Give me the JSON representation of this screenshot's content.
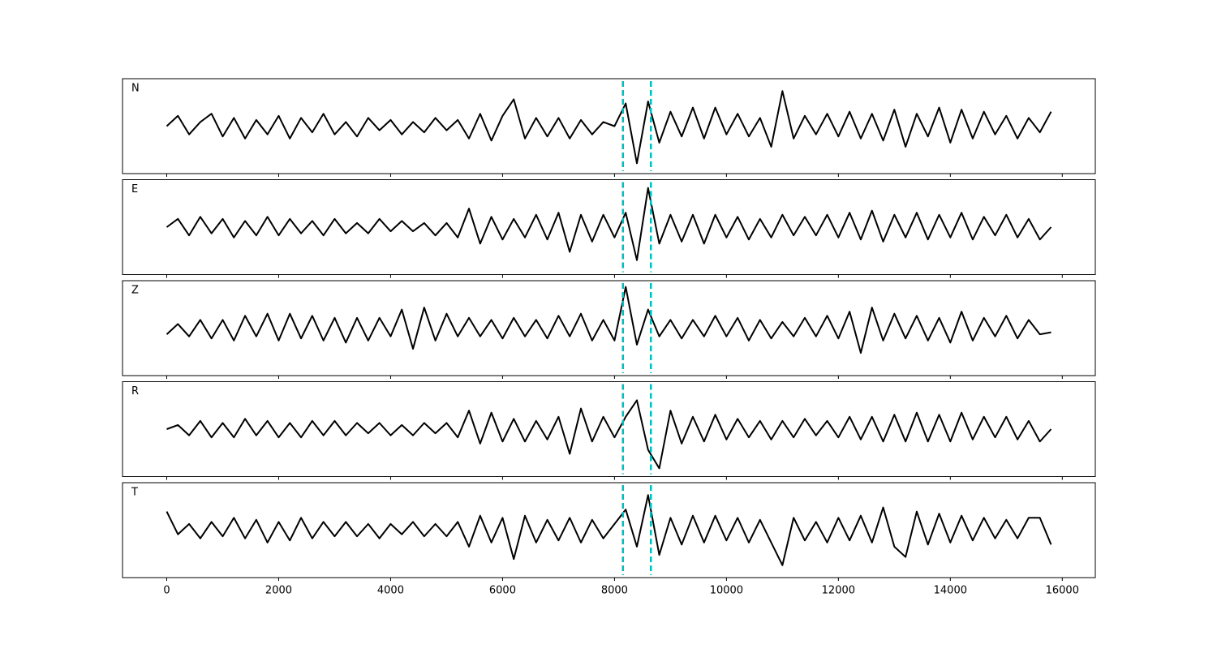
{
  "chart_data": {
    "type": "line",
    "x": [
      0,
      200,
      400,
      600,
      800,
      1000,
      1200,
      1400,
      1600,
      1800,
      2000,
      2200,
      2400,
      2600,
      2800,
      3000,
      3200,
      3400,
      3600,
      3800,
      4000,
      4200,
      4400,
      4600,
      4800,
      5000,
      5200,
      5400,
      5600,
      5800,
      6000,
      6200,
      6400,
      6600,
      6800,
      7000,
      7200,
      7400,
      7600,
      7800,
      8000,
      8200,
      8400,
      8600,
      8800,
      9000,
      9200,
      9400,
      9600,
      9800,
      10000,
      10200,
      10400,
      10600,
      10800,
      11000,
      11200,
      11400,
      11600,
      11800,
      12000,
      12200,
      12400,
      12600,
      12800,
      13000,
      13200,
      13400,
      13600,
      13800,
      14000,
      14200,
      14400,
      14600,
      14800,
      15000,
      15200,
      15400,
      15600,
      15800
    ],
    "xlim": [
      -790,
      16590
    ],
    "xticks": [
      0,
      2000,
      4000,
      6000,
      8000,
      10000,
      12000,
      14000,
      16000
    ],
    "ylim": [
      -1.15,
      1.15
    ],
    "series": [
      {
        "name": "N",
        "color": "#000000",
        "values": [
          0.0,
          0.25,
          -0.2,
          0.1,
          0.3,
          -0.25,
          0.2,
          -0.3,
          0.15,
          -0.2,
          0.25,
          -0.3,
          0.2,
          -0.15,
          0.3,
          -0.2,
          0.1,
          -0.25,
          0.2,
          -0.1,
          0.15,
          -0.2,
          0.1,
          -0.15,
          0.2,
          -0.1,
          0.15,
          -0.3,
          0.3,
          -0.35,
          0.25,
          0.65,
          -0.3,
          0.2,
          -0.25,
          0.2,
          -0.3,
          0.15,
          -0.2,
          0.1,
          0.0,
          0.55,
          -0.9,
          0.6,
          -0.4,
          0.35,
          -0.25,
          0.45,
          -0.3,
          0.45,
          -0.2,
          0.3,
          -0.25,
          0.2,
          -0.5,
          0.85,
          -0.3,
          0.25,
          -0.2,
          0.3,
          -0.25,
          0.35,
          -0.3,
          0.3,
          -0.35,
          0.4,
          -0.5,
          0.3,
          -0.25,
          0.45,
          -0.4,
          0.4,
          -0.3,
          0.35,
          -0.2,
          0.25,
          -0.3,
          0.2,
          -0.15,
          0.35
        ]
      },
      {
        "name": "E",
        "color": "#000000",
        "values": [
          0.0,
          0.2,
          -0.2,
          0.25,
          -0.15,
          0.2,
          -0.25,
          0.15,
          -0.2,
          0.25,
          -0.2,
          0.2,
          -0.15,
          0.15,
          -0.2,
          0.2,
          -0.15,
          0.1,
          -0.15,
          0.2,
          -0.1,
          0.15,
          -0.1,
          0.1,
          -0.2,
          0.1,
          -0.25,
          0.45,
          -0.4,
          0.25,
          -0.3,
          0.2,
          -0.25,
          0.3,
          -0.3,
          0.35,
          -0.6,
          0.3,
          -0.35,
          0.3,
          -0.25,
          0.35,
          -0.8,
          0.95,
          -0.4,
          0.3,
          -0.35,
          0.3,
          -0.4,
          0.3,
          -0.25,
          0.25,
          -0.3,
          0.2,
          -0.25,
          0.3,
          -0.2,
          0.25,
          -0.2,
          0.3,
          -0.25,
          0.35,
          -0.3,
          0.4,
          -0.35,
          0.3,
          -0.25,
          0.35,
          -0.3,
          0.3,
          -0.25,
          0.35,
          -0.3,
          0.25,
          -0.2,
          0.3,
          -0.25,
          0.2,
          -0.3,
          0.0
        ]
      },
      {
        "name": "Z",
        "color": "#000000",
        "values": [
          -0.15,
          0.1,
          -0.2,
          0.2,
          -0.25,
          0.2,
          -0.3,
          0.3,
          -0.2,
          0.35,
          -0.3,
          0.35,
          -0.25,
          0.3,
          -0.3,
          0.25,
          -0.35,
          0.25,
          -0.3,
          0.25,
          -0.2,
          0.45,
          -0.5,
          0.5,
          -0.3,
          0.35,
          -0.2,
          0.25,
          -0.2,
          0.2,
          -0.25,
          0.25,
          -0.2,
          0.2,
          -0.25,
          0.3,
          -0.2,
          0.35,
          -0.3,
          0.2,
          -0.3,
          1.0,
          -0.4,
          0.45,
          -0.2,
          0.2,
          -0.25,
          0.2,
          -0.2,
          0.3,
          -0.2,
          0.25,
          -0.3,
          0.2,
          -0.25,
          0.15,
          -0.2,
          0.25,
          -0.2,
          0.3,
          -0.25,
          0.4,
          -0.6,
          0.5,
          -0.3,
          0.35,
          -0.25,
          0.3,
          -0.3,
          0.25,
          -0.35,
          0.4,
          -0.3,
          0.25,
          -0.2,
          0.3,
          -0.25,
          0.2,
          -0.15,
          -0.1
        ]
      },
      {
        "name": "R",
        "color": "#000000",
        "values": [
          0.0,
          0.1,
          -0.15,
          0.2,
          -0.2,
          0.15,
          -0.2,
          0.25,
          -0.15,
          0.2,
          -0.2,
          0.15,
          -0.2,
          0.2,
          -0.15,
          0.2,
          -0.15,
          0.15,
          -0.1,
          0.15,
          -0.15,
          0.1,
          -0.15,
          0.15,
          -0.1,
          0.15,
          -0.2,
          0.45,
          -0.35,
          0.4,
          -0.3,
          0.25,
          -0.3,
          0.2,
          -0.25,
          0.3,
          -0.6,
          0.5,
          -0.3,
          0.3,
          -0.2,
          0.3,
          0.7,
          -0.5,
          -0.95,
          0.45,
          -0.35,
          0.3,
          -0.3,
          0.35,
          -0.25,
          0.25,
          -0.2,
          0.2,
          -0.25,
          0.2,
          -0.2,
          0.25,
          -0.15,
          0.2,
          -0.2,
          0.3,
          -0.25,
          0.3,
          -0.3,
          0.35,
          -0.3,
          0.4,
          -0.3,
          0.35,
          -0.3,
          0.4,
          -0.25,
          0.3,
          -0.2,
          0.3,
          -0.25,
          0.2,
          -0.3,
          0.0
        ]
      },
      {
        "name": "T",
        "color": "#000000",
        "values": [
          0.45,
          -0.1,
          0.15,
          -0.2,
          0.2,
          -0.15,
          0.3,
          -0.2,
          0.25,
          -0.3,
          0.2,
          -0.25,
          0.3,
          -0.2,
          0.2,
          -0.15,
          0.2,
          -0.15,
          0.15,
          -0.2,
          0.15,
          -0.1,
          0.2,
          -0.15,
          0.15,
          -0.15,
          0.2,
          -0.4,
          0.35,
          -0.3,
          0.3,
          -0.7,
          0.35,
          -0.3,
          0.25,
          -0.25,
          0.3,
          -0.3,
          0.25,
          -0.2,
          0.15,
          0.5,
          -0.4,
          0.85,
          -0.6,
          0.3,
          -0.35,
          0.35,
          -0.3,
          0.35,
          -0.25,
          0.3,
          -0.3,
          0.25,
          -0.3,
          -0.85,
          0.3,
          -0.25,
          0.2,
          -0.3,
          0.3,
          -0.25,
          0.35,
          -0.3,
          0.55,
          -0.4,
          -0.65,
          0.45,
          -0.35,
          0.4,
          -0.3,
          0.35,
          -0.25,
          0.3,
          -0.2,
          0.25,
          -0.2,
          0.3,
          0.3,
          -0.35
        ]
      }
    ],
    "vlines": {
      "values": [
        8150,
        8650
      ],
      "color": "#00bfbf",
      "style": "dashed"
    }
  }
}
